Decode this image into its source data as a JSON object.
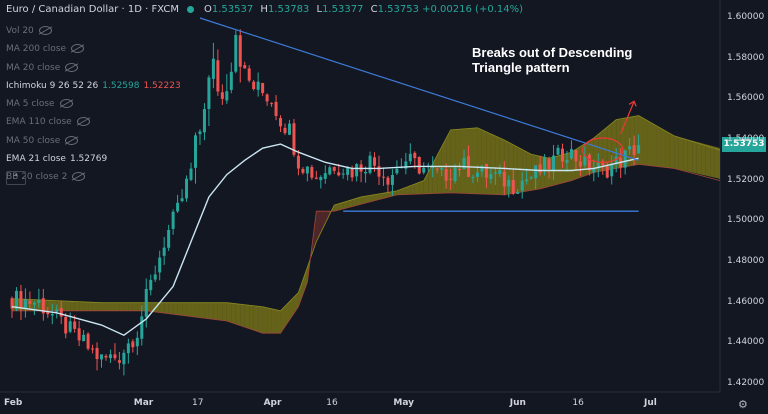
{
  "header": {
    "symbol": "Euro / Canadian Dollar · 1D · FXCM",
    "o_label": "O",
    "o": "1.53537",
    "h_label": "H",
    "h": "1.53783",
    "l_label": "L",
    "l": "1.53377",
    "c_label": "C",
    "c": "1.53753",
    "change": "+0.00216 (+0.14%)"
  },
  "legend": {
    "vol": "Vol 20",
    "ma200": "MA 200 close",
    "ma20": "MA 20 close",
    "ichimoku": "Ichimoku 9 26 52 26",
    "ichimoku_v1": "1.52598",
    "ichimoku_v2": "1.52223",
    "ma5": "MA 5 close",
    "ema110": "EMA 110 close",
    "ma50": "MA 50 close",
    "ema21": "EMA 21 close",
    "ema21_v": "1.52769",
    "bb": "BB 20 close 2"
  },
  "annotation": "Breaks out of Descending\nTriangle pattern",
  "last_price": "1.53753",
  "colors": {
    "up": "#26a69a",
    "down": "#ef5350",
    "bg": "#131722",
    "ema": "#c9e6f2",
    "trend": "#3d7bd9"
  },
  "chart_data": {
    "type": "candlestick",
    "y_ticks": [
      "1.60000",
      "1.58000",
      "1.56000",
      "1.54000",
      "1.52000",
      "1.50000",
      "1.48000",
      "1.46000",
      "1.44000",
      "1.42000"
    ],
    "ylim": [
      1.415,
      1.62
    ],
    "x_ticks": [
      {
        "label": "Feb",
        "bold": true
      },
      {
        "label": "Mar",
        "bold": true
      },
      {
        "label": "17",
        "bold": false
      },
      {
        "label": "Apr",
        "bold": true
      },
      {
        "label": "16",
        "bold": false
      },
      {
        "label": "May",
        "bold": true
      },
      {
        "label": "Jun",
        "bold": true
      },
      {
        "label": "16",
        "bold": false
      },
      {
        "label": "Jul",
        "bold": true
      }
    ],
    "x_tick_index": [
      0,
      29,
      42,
      58,
      72,
      87,
      113,
      127,
      143
    ],
    "n_bars": 143,
    "ema21": [
      [
        0,
        1.458
      ],
      [
        10,
        1.455
      ],
      [
        20,
        1.449
      ],
      [
        25,
        1.444
      ],
      [
        30,
        1.452
      ],
      [
        36,
        1.468
      ],
      [
        40,
        1.49
      ],
      [
        44,
        1.512
      ],
      [
        48,
        1.523
      ],
      [
        52,
        1.53
      ],
      [
        56,
        1.536
      ],
      [
        60,
        1.538
      ],
      [
        64,
        1.534
      ],
      [
        70,
        1.529
      ],
      [
        76,
        1.526
      ],
      [
        82,
        1.526
      ],
      [
        90,
        1.527
      ],
      [
        100,
        1.527
      ],
      [
        110,
        1.526
      ],
      [
        118,
        1.525
      ],
      [
        125,
        1.525
      ],
      [
        130,
        1.526
      ],
      [
        136,
        1.529
      ],
      [
        140,
        1.531
      ]
    ],
    "cloud_a": [
      [
        0,
        1.462
      ],
      [
        20,
        1.46
      ],
      [
        30,
        1.46
      ],
      [
        48,
        1.46
      ],
      [
        56,
        1.458
      ],
      [
        60,
        1.456
      ],
      [
        64,
        1.465
      ],
      [
        68,
        1.49
      ],
      [
        72,
        1.508
      ],
      [
        78,
        1.512
      ],
      [
        86,
        1.515
      ],
      [
        92,
        1.52
      ],
      [
        98,
        1.545
      ],
      [
        104,
        1.546
      ],
      [
        110,
        1.54
      ],
      [
        116,
        1.533
      ],
      [
        120,
        1.531
      ],
      [
        125,
        1.534
      ],
      [
        130,
        1.541
      ],
      [
        135,
        1.55
      ],
      [
        140,
        1.552
      ],
      [
        148,
        1.542
      ],
      [
        160,
        1.535
      ]
    ],
    "cloud_b": [
      [
        0,
        1.456
      ],
      [
        20,
        1.456
      ],
      [
        30,
        1.456
      ],
      [
        48,
        1.451
      ],
      [
        56,
        1.445
      ],
      [
        60,
        1.445
      ],
      [
        64,
        1.458
      ],
      [
        66,
        1.47
      ],
      [
        68,
        1.505
      ],
      [
        72,
        1.505
      ],
      [
        86,
        1.513
      ],
      [
        98,
        1.514
      ],
      [
        110,
        1.513
      ],
      [
        118,
        1.516
      ],
      [
        125,
        1.52
      ],
      [
        130,
        1.524
      ],
      [
        140,
        1.528
      ],
      [
        148,
        1.526
      ],
      [
        160,
        1.52
      ]
    ],
    "trendline": [
      [
        42,
        1.6
      ],
      [
        140,
        1.53
      ]
    ],
    "support": [
      [
        74,
        1.505
      ],
      [
        140,
        1.505
      ]
    ],
    "arrow": {
      "from": [
        136,
        1.543
      ],
      "to": [
        139,
        1.559
      ]
    },
    "circle": {
      "center": [
        132,
        1.535
      ],
      "rx_bars": 4.5,
      "ry": 0.006
    }
  }
}
